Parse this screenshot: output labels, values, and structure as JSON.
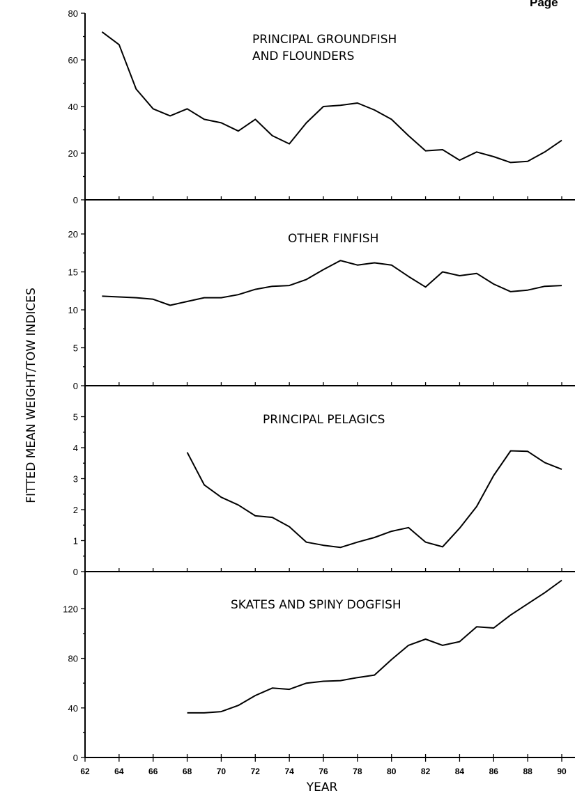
{
  "page_label": "Page",
  "chart_data": {
    "type": "line",
    "ylabel": "FITTED MEAN WEIGHT/TOW INDICES",
    "xlabel": "YEAR",
    "xlim": [
      62,
      90
    ],
    "xticks": [
      62,
      64,
      66,
      68,
      70,
      72,
      74,
      76,
      78,
      80,
      82,
      84,
      86,
      88,
      90
    ],
    "panels": [
      {
        "title_lines": [
          "PRINCIPAL GROUNDFISH",
          "AND FLOUNDERS"
        ],
        "ylim": [
          0,
          80
        ],
        "yticks": [
          0,
          20,
          40,
          60,
          80
        ],
        "x": [
          63,
          64,
          65,
          66,
          67,
          68,
          69,
          70,
          71,
          72,
          73,
          74,
          75,
          76,
          77,
          78,
          79,
          80,
          81,
          82,
          83,
          84,
          85,
          86,
          87,
          88,
          89,
          90
        ],
        "values": [
          72,
          66.5,
          47.5,
          39,
          36,
          39,
          34.5,
          33,
          29.5,
          34.5,
          27.5,
          24,
          33,
          40,
          40.5,
          41.5,
          38.5,
          34.5,
          27.5,
          21,
          21.5,
          17,
          20.5,
          18.5,
          16,
          16.5,
          20.5,
          25.5
        ]
      },
      {
        "title_lines": [
          "OTHER FINFISH"
        ],
        "ylim": [
          0,
          24.5
        ],
        "yticks": [
          0,
          5,
          10,
          15,
          20
        ],
        "x": [
          63,
          64,
          65,
          66,
          67,
          68,
          69,
          70,
          71,
          72,
          73,
          74,
          75,
          76,
          77,
          78,
          79,
          80,
          81,
          82,
          83,
          84,
          85,
          86,
          87,
          88,
          89,
          90
        ],
        "values": [
          11.8,
          11.7,
          11.6,
          11.4,
          10.6,
          11.1,
          11.6,
          11.6,
          12,
          12.7,
          13.1,
          13.2,
          14,
          15.3,
          16.5,
          15.9,
          16.2,
          15.9,
          14.4,
          13,
          15,
          14.5,
          14.8,
          13.4,
          12.4,
          12.6,
          13.1,
          13.2
        ]
      },
      {
        "title_lines": [
          "PRINCIPAL PELAGICS"
        ],
        "ylim": [
          0,
          6
        ],
        "yticks": [
          0,
          1,
          2,
          3,
          4,
          5
        ],
        "x": [
          68,
          69,
          70,
          71,
          72,
          73,
          74,
          75,
          76,
          77,
          78,
          79,
          80,
          81,
          82,
          83,
          84,
          85,
          86,
          87,
          88,
          89,
          90
        ],
        "values": [
          3.85,
          2.8,
          2.4,
          2.15,
          1.8,
          1.75,
          1.45,
          0.95,
          0.85,
          0.78,
          0.95,
          1.1,
          1.3,
          1.42,
          0.95,
          0.8,
          1.4,
          2.1,
          3.1,
          3.9,
          3.88,
          3.52,
          3.3
        ]
      },
      {
        "title_lines": [
          "SKATES AND SPINY DOGFISH"
        ],
        "ylim": [
          0,
          150
        ],
        "yticks": [
          0,
          40,
          80,
          120
        ],
        "x": [
          68,
          69,
          70,
          71,
          72,
          73,
          74,
          75,
          76,
          77,
          78,
          79,
          80,
          81,
          82,
          83,
          84,
          85,
          86,
          87,
          88,
          89,
          90
        ],
        "values": [
          36,
          36,
          37,
          42,
          50,
          56,
          55,
          60,
          61.5,
          62,
          64.5,
          66.5,
          79,
          90.5,
          95.5,
          90.5,
          93.5,
          105.5,
          104.5,
          115,
          124,
          133,
          143
        ]
      }
    ]
  }
}
